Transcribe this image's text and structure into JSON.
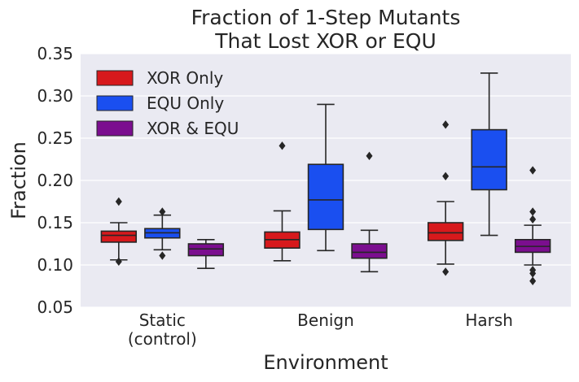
{
  "chart_data": {
    "type": "boxplot",
    "title": [
      "Fraction of 1-Step Mutants",
      "That Lost XOR or EQU"
    ],
    "xlabel": "Environment",
    "ylabel": "Fraction",
    "ylim": [
      0.05,
      0.35
    ],
    "yticks": [
      "0.05",
      "0.10",
      "0.15",
      "0.20",
      "0.25",
      "0.30",
      "0.35"
    ],
    "categories": [
      [
        "Static",
        "(control)"
      ],
      [
        "Benign"
      ],
      [
        "Harsh"
      ]
    ],
    "grid": true,
    "legend_position": "top-left",
    "series": [
      {
        "name": "XOR Only",
        "color": "#d7191c",
        "boxes": [
          {
            "whislo": 0.106,
            "q1": 0.127,
            "med": 0.135,
            "q3": 0.14,
            "whishi": 0.15,
            "fliers": [
              0.175,
              0.104
            ]
          },
          {
            "whislo": 0.105,
            "q1": 0.12,
            "med": 0.13,
            "q3": 0.139,
            "whishi": 0.164,
            "fliers": [
              0.241
            ]
          },
          {
            "whislo": 0.101,
            "q1": 0.129,
            "med": 0.138,
            "q3": 0.15,
            "whishi": 0.175,
            "fliers": [
              0.266,
              0.205,
              0.092
            ]
          }
        ]
      },
      {
        "name": "EQU Only",
        "color": "#1a4ff0",
        "boxes": [
          {
            "whislo": 0.118,
            "q1": 0.132,
            "med": 0.138,
            "q3": 0.143,
            "whishi": 0.159,
            "fliers": [
              0.163,
              0.111
            ]
          },
          {
            "whislo": 0.117,
            "q1": 0.142,
            "med": 0.177,
            "q3": 0.219,
            "whishi": 0.29,
            "fliers": []
          },
          {
            "whislo": 0.135,
            "q1": 0.189,
            "med": 0.216,
            "q3": 0.26,
            "whishi": 0.327,
            "fliers": []
          }
        ]
      },
      {
        "name": "XOR & EQU",
        "color": "#7b0e8f",
        "boxes": [
          {
            "whislo": 0.096,
            "q1": 0.111,
            "med": 0.119,
            "q3": 0.125,
            "whishi": 0.13,
            "fliers": []
          },
          {
            "whislo": 0.092,
            "q1": 0.108,
            "med": 0.115,
            "q3": 0.125,
            "whishi": 0.141,
            "fliers": [
              0.229
            ]
          },
          {
            "whislo": 0.1,
            "q1": 0.115,
            "med": 0.122,
            "q3": 0.13,
            "whishi": 0.147,
            "fliers": [
              0.212,
              0.163,
              0.154,
              0.094,
              0.09,
              0.081
            ]
          }
        ]
      }
    ]
  }
}
